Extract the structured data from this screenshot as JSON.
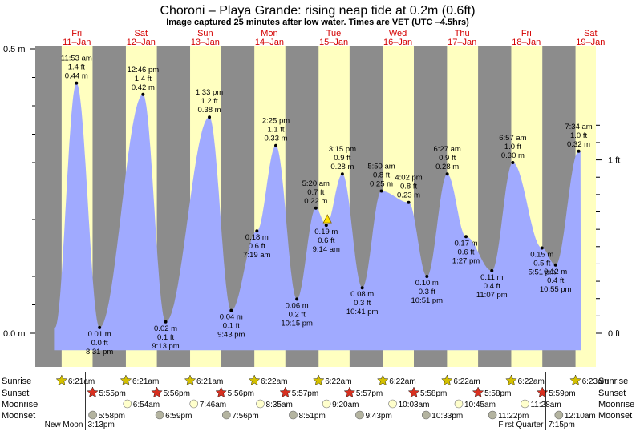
{
  "title": "Choroni – Playa Grande: rising  neap tide at 0.2m (0.6ft)",
  "subtitle": "Image captured 25 minutes after low water. Times are VET (UTC –4.5hrs)",
  "days": [
    {
      "dow": "Fri",
      "date": "11–Jan"
    },
    {
      "dow": "Sat",
      "date": "12–Jan"
    },
    {
      "dow": "Sun",
      "date": "13–Jan"
    },
    {
      "dow": "Mon",
      "date": "14–Jan"
    },
    {
      "dow": "Tue",
      "date": "15–Jan"
    },
    {
      "dow": "Wed",
      "date": "16–Jan"
    },
    {
      "dow": "Thu",
      "date": "17–Jan"
    },
    {
      "dow": "Fri",
      "date": "18–Jan"
    },
    {
      "dow": "Sat",
      "date": "19–Jan"
    }
  ],
  "axes": {
    "left_ticks": [
      {
        "label": "0.5 m",
        "value": 0.5
      },
      {
        "label": "0.0 m",
        "value": 0.0
      }
    ],
    "right_ticks": [
      {
        "label": "1 ft",
        "value": 0.3048
      },
      {
        "label": "0 ft",
        "value": 0.0
      }
    ]
  },
  "colors": {
    "night": "#8c8c8c",
    "day": "#ffffc0",
    "water": "#a0aaff",
    "day_label": "#d40000",
    "sun_star": "#d4c000",
    "sunset_star": "#d83020",
    "moon": "#ffffcc",
    "moonset": "#b4b4a0"
  },
  "chart_data": {
    "type": "area",
    "x_unit": "hours from 11-Jan 00:00",
    "y_unit": "m",
    "ylim": [
      -0.02,
      0.52
    ],
    "xlim": [
      -3.5,
      206
    ],
    "grid": false,
    "events": [
      {
        "t": 11.883,
        "h": 0.44,
        "time": "11:53 am",
        "ft": "1.4 ft",
        "m": "0.44 m",
        "type": "high"
      },
      {
        "t": 20.517,
        "h": 0.01,
        "time": "8:31 pm",
        "ft": "0.0 ft",
        "m": "0.01 m",
        "type": "low"
      },
      {
        "t": 36.767,
        "h": 0.42,
        "time": "12:46 pm",
        "ft": "1.4 ft",
        "m": "0.42 m",
        "type": "high"
      },
      {
        "t": 45.217,
        "h": 0.02,
        "time": "9:13 pm",
        "ft": "0.1 ft",
        "m": "0.02 m",
        "type": "low"
      },
      {
        "t": 61.55,
        "h": 0.38,
        "time": "1:33 pm",
        "ft": "1.2 ft",
        "m": "0.38 m",
        "type": "high"
      },
      {
        "t": 69.717,
        "h": 0.04,
        "time": "9:43 pm",
        "ft": "0.1 ft",
        "m": "0.04 m",
        "type": "low"
      },
      {
        "t": 79.317,
        "h": 0.18,
        "time": "7:19 am",
        "ft": "0.6 ft",
        "m": "0.18 m",
        "type": "low"
      },
      {
        "t": 86.417,
        "h": 0.33,
        "time": "2:25 pm",
        "ft": "1.1 ft",
        "m": "0.33 m",
        "type": "high"
      },
      {
        "t": 94.25,
        "h": 0.06,
        "time": "10:15 pm",
        "ft": "0.2 ft",
        "m": "0.06 m",
        "type": "low"
      },
      {
        "t": 101.333,
        "h": 0.22,
        "time": "5:20 am",
        "ft": "0.7 ft",
        "m": "0.22 m",
        "type": "high"
      },
      {
        "t": 105.233,
        "h": 0.19,
        "time": "9:14 am",
        "ft": "0.6 ft",
        "m": "0.19 m",
        "type": "low"
      },
      {
        "t": 111.25,
        "h": 0.28,
        "time": "3:15 pm",
        "ft": "0.9 ft",
        "m": "0.28 m",
        "type": "high"
      },
      {
        "t": 118.683,
        "h": 0.08,
        "time": "10:41 pm",
        "ft": "0.3 ft",
        "m": "0.08 m",
        "type": "low"
      },
      {
        "t": 125.833,
        "h": 0.25,
        "time": "5:50 am",
        "ft": "0.8 ft",
        "m": "0.25 m",
        "type": "high"
      },
      {
        "t": 136.033,
        "h": 0.23,
        "time": "4:02 pm",
        "ft": "0.8 ft",
        "m": "0.23 m",
        "type": "high"
      },
      {
        "t": 142.85,
        "h": 0.1,
        "time": "10:51 pm",
        "ft": "0.3 ft",
        "m": "0.10 m",
        "type": "low"
      },
      {
        "t": 150.45,
        "h": 0.28,
        "time": "6:27 am",
        "ft": "0.9 ft",
        "m": "0.28 m",
        "type": "high"
      },
      {
        "t": 157.45,
        "h": 0.17,
        "time": "1:27 pm",
        "ft": "0.6 ft",
        "m": "0.17 m",
        "type": "low"
      },
      {
        "t": 167.117,
        "h": 0.11,
        "time": "11:07 pm",
        "ft": "0.4 ft",
        "m": "0.11 m",
        "type": "low"
      },
      {
        "t": 174.95,
        "h": 0.3,
        "time": "6:57 am",
        "ft": "1.0 ft",
        "m": "0.30 m",
        "type": "high"
      },
      {
        "t": 185.85,
        "h": 0.15,
        "time": "5:51 pm",
        "ft": "0.5 ft",
        "m": "0.15 m",
        "type": "low"
      },
      {
        "t": 190.917,
        "h": 0.12,
        "time": "10:55 pm",
        "ft": "0.4 ft",
        "m": "0.12 m",
        "type": "low"
      },
      {
        "t": 199.567,
        "h": 0.32,
        "time": "7:34 am",
        "ft": "1.0 ft",
        "m": "0.32 m",
        "type": "high"
      }
    ],
    "current": {
      "t": 105.65,
      "h": 0.19
    }
  },
  "rows": {
    "labels": [
      "Sunrise",
      "Sunset",
      "Moonrise",
      "Moonset"
    ],
    "sunrise": [
      {
        "t": 6.35,
        "text": "6:21am"
      },
      {
        "t": 30.35,
        "text": "6:21am"
      },
      {
        "t": 54.35,
        "text": "6:21am"
      },
      {
        "t": 78.367,
        "text": "6:22am"
      },
      {
        "t": 102.367,
        "text": "6:22am"
      },
      {
        "t": 126.367,
        "text": "6:22am"
      },
      {
        "t": 150.367,
        "text": "6:22am"
      },
      {
        "t": 174.367,
        "text": "6:22am"
      },
      {
        "t": 198.383,
        "text": "6:23am"
      }
    ],
    "sunset": [
      {
        "t": 17.917,
        "text": "5:55pm"
      },
      {
        "t": 41.933,
        "text": "5:56pm"
      },
      {
        "t": 65.933,
        "text": "5:56pm"
      },
      {
        "t": 89.95,
        "text": "5:57pm"
      },
      {
        "t": 113.95,
        "text": "5:57pm"
      },
      {
        "t": 137.967,
        "text": "5:58pm"
      },
      {
        "t": 161.967,
        "text": "5:58pm"
      },
      {
        "t": 185.983,
        "text": "5:59pm"
      }
    ],
    "moonrise": [
      {
        "t": 30.9,
        "text": "6:54am"
      },
      {
        "t": 55.767,
        "text": "7:46am"
      },
      {
        "t": 80.583,
        "text": "8:35am"
      },
      {
        "t": 105.333,
        "text": "9:20am"
      },
      {
        "t": 130.05,
        "text": "10:03am"
      },
      {
        "t": 154.75,
        "text": "10:45am"
      },
      {
        "t": 179.467,
        "text": "11:28am"
      }
    ],
    "moonset": [
      {
        "t": 17.967,
        "text": "5:58pm"
      },
      {
        "t": 42.983,
        "text": "6:59pm"
      },
      {
        "t": 67.933,
        "text": "7:56pm"
      },
      {
        "t": 92.85,
        "text": "8:51pm"
      },
      {
        "t": 117.717,
        "text": "9:43pm"
      },
      {
        "t": 142.55,
        "text": "10:33pm"
      },
      {
        "t": 167.367,
        "text": "11:22pm"
      },
      {
        "t": 192.167,
        "text": "12:10am"
      }
    ]
  },
  "moon_phases": [
    {
      "label": "New Moon",
      "time": "3:13pm",
      "t": 15.217
    },
    {
      "label": "First Quarter",
      "time": "7:15pm",
      "t": 187.25
    }
  ]
}
